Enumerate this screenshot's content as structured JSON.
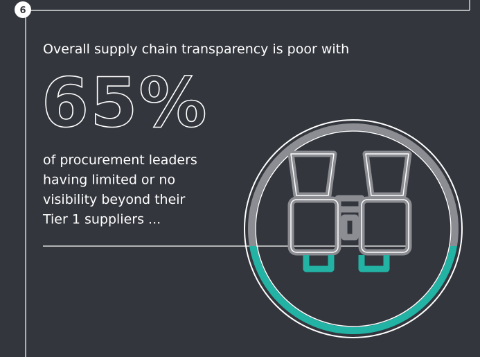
{
  "badge": "6",
  "headline": "Overall supply chain transparency is poor with",
  "stat": "65%",
  "body_lines": [
    "of procurement leaders",
    "having limited or no",
    "visibility beyond their",
    "Tier 1 suppliers ..."
  ]
}
